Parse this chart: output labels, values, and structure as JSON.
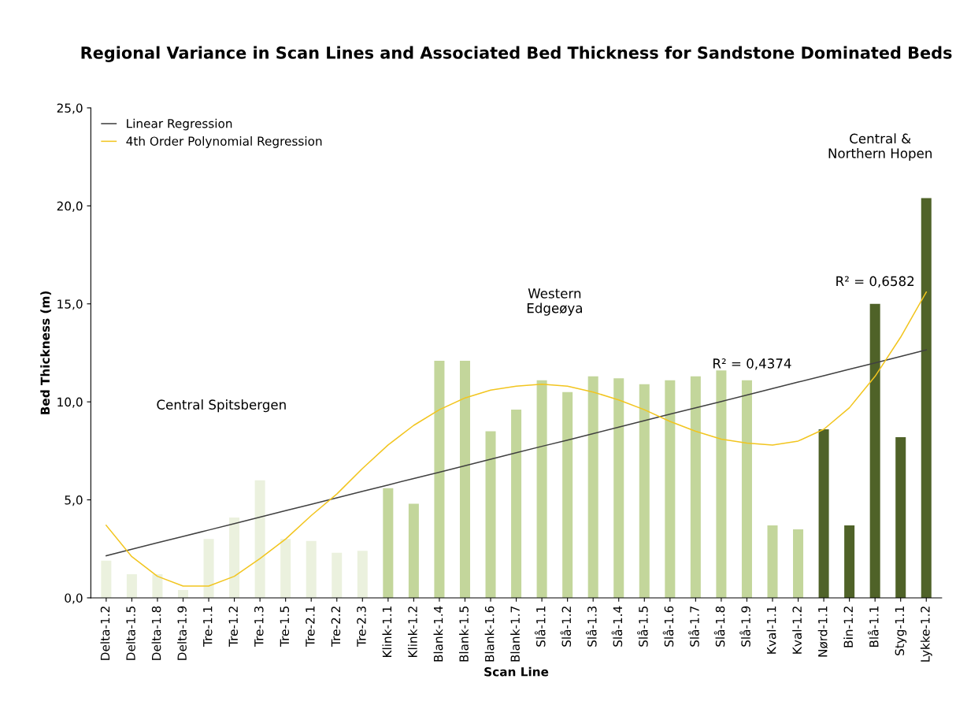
{
  "chart_data": {
    "type": "bar",
    "title": "Regional Variance in Scan Lines and Associated Bed Thickness for Sandstone Dominated Beds",
    "xlabel": "Scan Line",
    "ylabel": "Bed Thickness (m)",
    "categories": [
      "Delta-1.2",
      "Delta-1.5",
      "Delta-1.8",
      "Delta-1.9",
      "Tre-1.1",
      "Tre-1.2",
      "Tre-1.3",
      "Tre-1.5",
      "Tre-2.1",
      "Tre-2.2",
      "Tre-2.3",
      "Klink-1.1",
      "Klink-1.2",
      "Blank-1.4",
      "Blank-1.5",
      "Blank-1.6",
      "Blank-1.7",
      "Slå-1.1",
      "Slå-1.2",
      "Slå-1.3",
      "Slå-1.4",
      "Slå-1.5",
      "Slå-1.6",
      "Slå-1.7",
      "Slå-1.8",
      "Slå-1.9",
      "Kval-1.1",
      "Kval-1.2",
      "Nørd-1.1",
      "Bin-1.2",
      "Blå-1.1",
      "Styg-1.1",
      "Lykke-1.2"
    ],
    "series": [
      {
        "values": [
          1.9,
          1.2,
          1.2,
          0.4,
          3.0,
          4.1,
          6.0,
          3.0,
          2.9,
          2.3,
          2.4,
          5.6,
          4.8,
          12.1,
          12.1,
          8.5,
          9.6,
          11.1,
          10.5,
          11.3,
          11.2,
          10.9,
          11.1,
          11.3,
          11.6,
          11.1,
          3.7,
          3.5,
          8.6,
          3.7,
          15.0,
          8.2,
          20.4
        ],
        "colors": [
          "#ebf1de",
          "#ebf1de",
          "#ebf1de",
          "#ebf1de",
          "#ebf1de",
          "#ebf1de",
          "#ebf1de",
          "#ebf1de",
          "#ebf1de",
          "#ebf1de",
          "#ebf1de",
          "#c3d69b",
          "#c3d69b",
          "#c3d69b",
          "#c3d69b",
          "#c3d69b",
          "#c3d69b",
          "#c3d69b",
          "#c3d69b",
          "#c3d69b",
          "#c3d69b",
          "#c3d69b",
          "#c3d69b",
          "#c3d69b",
          "#c3d69b",
          "#c3d69b",
          "#c3d69b",
          "#c3d69b",
          "#4f6228",
          "#4f6228",
          "#4f6228",
          "#4f6228",
          "#4f6228"
        ]
      },
      {
        "type": "line",
        "name": "Linear Regression",
        "color": "#404040",
        "values": [
          2.15,
          2.48,
          2.81,
          3.13,
          3.46,
          3.79,
          4.12,
          4.45,
          4.77,
          5.1,
          5.43,
          5.76,
          6.09,
          6.41,
          6.74,
          7.07,
          7.4,
          7.73,
          8.05,
          8.38,
          8.71,
          9.04,
          9.37,
          9.69,
          10.02,
          10.35,
          10.68,
          11.01,
          11.33,
          11.66,
          11.99,
          12.32,
          12.65
        ]
      },
      {
        "type": "line",
        "name": "4th Order Polynomial Regression",
        "color": "#f2c51f",
        "values": [
          3.7,
          2.1,
          1.1,
          0.6,
          0.6,
          1.1,
          2.0,
          3.0,
          4.2,
          5.3,
          6.6,
          7.8,
          8.8,
          9.6,
          10.2,
          10.6,
          10.8,
          10.9,
          10.8,
          10.5,
          10.1,
          9.6,
          9.0,
          8.5,
          8.1,
          7.9,
          7.8,
          8.0,
          8.6,
          9.7,
          11.3,
          13.3,
          15.6
        ]
      }
    ],
    "ylim": [
      0,
      25
    ],
    "yticks": [
      {
        "value": 0,
        "label": "0,0"
      },
      {
        "value": 5,
        "label": "5,0"
      },
      {
        "value": 10,
        "label": "10,0"
      },
      {
        "value": 15,
        "label": "15,0"
      },
      {
        "value": 20,
        "label": "20,0"
      },
      {
        "value": 25,
        "label": "25,0"
      }
    ],
    "grid": false,
    "legend": "top left",
    "annotations": [
      "Central Spitsbergen",
      "Western\nEdgeøya",
      "Central &\nNorthern Hopen",
      "R² = 0,4374",
      "R² = 0,6582"
    ]
  }
}
